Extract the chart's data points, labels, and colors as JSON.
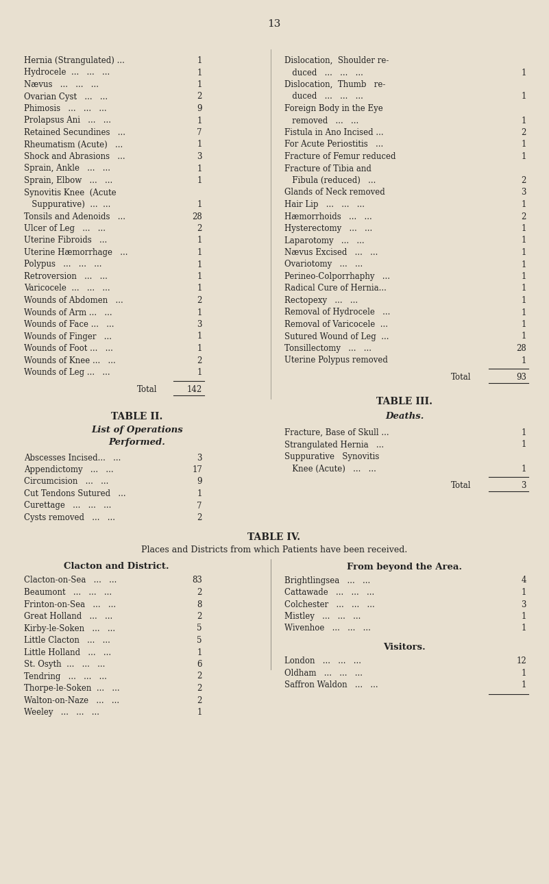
{
  "page_number": "13",
  "bg_color": "#e8e0d0",
  "text_color": "#222222",
  "page_width": 8.01,
  "page_height": 12.9,
  "left_col_items": [
    [
      "Hernia (Strangulated) ...",
      "1"
    ],
    [
      "Hydrocele  ...   ...   ...",
      "1"
    ],
    [
      "Nævus   ...   ...   ...",
      "1"
    ],
    [
      "Ovarian Cyst   ...   ...",
      "2"
    ],
    [
      "Phimosis   ...   ...   ...",
      "9"
    ],
    [
      "Prolapsus Ani   ...   ...",
      "1"
    ],
    [
      "Retained Secundines   ...",
      "7"
    ],
    [
      "Rheumatism (Acute)   ...",
      "1"
    ],
    [
      "Shock and Abrasions   ...",
      "3"
    ],
    [
      "Sprain, Ankle   ...   ...",
      "1"
    ],
    [
      "Sprain, Elbow   ...   ...",
      "1"
    ],
    [
      "Synovitis Knee  (Acute",
      ""
    ],
    [
      "   Suppurative)  ...  ...",
      "1"
    ],
    [
      "Tonsils and Adenoids   ...",
      "28"
    ],
    [
      "Ulcer of Leg   ...   ...",
      "2"
    ],
    [
      "Uterine Fibroids   ...",
      "1"
    ],
    [
      "Uterine Hæmorrhage   ...",
      "1"
    ],
    [
      "Polypus   ...   ...   ...",
      "1"
    ],
    [
      "Retroversion   ...   ...",
      "1"
    ],
    [
      "Varicocele  ...   ...   ...",
      "1"
    ],
    [
      "Wounds of Abdomen   ...",
      "2"
    ],
    [
      "Wounds of Arm ...   ...",
      "1"
    ],
    [
      "Wounds of Face ...   ...",
      "3"
    ],
    [
      "Wounds of Finger   ...",
      "1"
    ],
    [
      "Wounds of Foot ...   ...",
      "1"
    ],
    [
      "Wounds of Knee ...   ...",
      "2"
    ],
    [
      "Wounds of Leg ...   ...",
      "1"
    ]
  ],
  "left_total": "142",
  "right_col_items": [
    [
      "Dislocation,  Shoulder re-",
      ""
    ],
    [
      "   duced   ...   ...   ...",
      "1"
    ],
    [
      "Dislocation,  Thumb   re-",
      ""
    ],
    [
      "   duced   ...   ...   ...",
      "1"
    ],
    [
      "Foreign Body in the Eye",
      ""
    ],
    [
      "   removed   ...   ...",
      "1"
    ],
    [
      "Fistula in Ano Incised ...",
      "2"
    ],
    [
      "For Acute Periostitis   ...",
      "1"
    ],
    [
      "Fracture of Femur reduced",
      "1"
    ],
    [
      "Fracture of Tibia and",
      ""
    ],
    [
      "   Fibula (reduced)   ...",
      "2"
    ],
    [
      "Glands of Neck removed",
      "3"
    ],
    [
      "Hair Lip   ...   ...   ...",
      "1"
    ],
    [
      "Hæmorrhoids   ...   ...",
      "2"
    ],
    [
      "Hysterectomy   ...   ...",
      "1"
    ],
    [
      "Laparotomy   ...   ...",
      "1"
    ],
    [
      "Nævus Excised   ...   ...",
      "1"
    ],
    [
      "Ovariotomy   ...   ...",
      "1"
    ],
    [
      "Perineo-Colporrhaphy   ...",
      "1"
    ],
    [
      "Radical Cure of Hernia...",
      "1"
    ],
    [
      "Rectopexy   ...   ...",
      "1"
    ],
    [
      "Removal of Hydrocele   ...",
      "1"
    ],
    [
      "Removal of Varicocele  ...",
      "1"
    ],
    [
      "Sutured Wound of Leg  ...",
      "1"
    ],
    [
      "Tonsillectomy   ...   ...",
      "28"
    ],
    [
      "Uterine Polypus removed",
      "1"
    ]
  ],
  "right_total": "93",
  "table2_title": "TABLE II.",
  "table2_subtitle1": "List of Operations",
  "table2_subtitle2": "Performed.",
  "table2_items": [
    [
      "Abscesses Incised...   ...",
      "3"
    ],
    [
      "Appendictomy   ...   ...",
      "17"
    ],
    [
      "Circumcision   ...   ...",
      "9"
    ],
    [
      "Cut Tendons Sutured   ...",
      "1"
    ],
    [
      "Curettage   ...   ...   ...",
      "7"
    ],
    [
      "Cysts removed   ...   ...",
      "2"
    ]
  ],
  "table3_title": "TABLE III.",
  "table3_subtitle": "Deaths.",
  "table3_items": [
    [
      "Fracture, Base of Skull ...",
      "1"
    ],
    [
      "Strangulated Hernia   ...",
      "1"
    ],
    [
      "Suppurative   Synovitis",
      ""
    ],
    [
      "   Knee (Acute)   ...   ...",
      "1"
    ]
  ],
  "table3_total": "3",
  "table4_title": "TABLE IV.",
  "table4_subtitle": "Places and Districts from which Patients have been received.",
  "table4_left_header": "Clacton and District.",
  "table4_left_items": [
    [
      "Clacton-on-Sea   ...   ...",
      "83"
    ],
    [
      "Beaumont   ...   ...   ...",
      "2"
    ],
    [
      "Frinton-on-Sea   ...   ...",
      "8"
    ],
    [
      "Great Holland   ...   ...",
      "2"
    ],
    [
      "Kirby-le-Soken   ...   ...",
      "5"
    ],
    [
      "Little Clacton   ...   ...",
      "5"
    ],
    [
      "Little Holland   ...   ...",
      "1"
    ],
    [
      "St. Osyth  ...   ...   ...",
      "6"
    ],
    [
      "Tendring   ...   ...   ...",
      "2"
    ],
    [
      "Thorpe-le-Soken  ...   ...",
      "2"
    ],
    [
      "Walton-on-Naze   ...   ...",
      "2"
    ],
    [
      "Weeley   ...   ...   ...",
      "1"
    ]
  ],
  "table4_right_header": "From beyond the Area.",
  "table4_right_items": [
    [
      "Brightlingsea   ...   ...",
      "4"
    ],
    [
      "Cattawade   ...   ...   ...",
      "1"
    ],
    [
      "Colchester   ...   ...   ...",
      "3"
    ],
    [
      "Mistley   ...   ...   ...",
      "1"
    ],
    [
      "Wivenhoe   ...   ...   ...",
      "1"
    ]
  ],
  "table4_visitors_header": "Visitors.",
  "table4_visitors_items": [
    [
      "London   ...   ...   ...",
      "12"
    ],
    [
      "Oldham   ...   ...   ...",
      "1"
    ],
    [
      "Saffron Waldon   ...   ...",
      "1"
    ]
  ]
}
